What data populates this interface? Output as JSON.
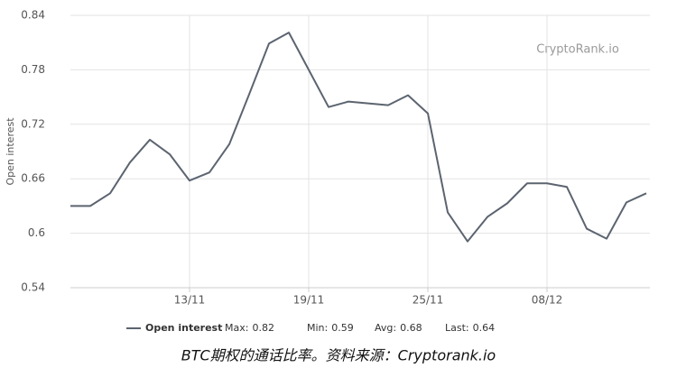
{
  "chart_data": {
    "type": "line",
    "y_label": "Open interest",
    "watermark": "CryptoRank.io",
    "caption": "BTC期权的通话比率。资料来源：Cryptorank.io",
    "categories": [
      null,
      null,
      null,
      null,
      null,
      null,
      "13/11",
      null,
      null,
      null,
      null,
      null,
      "19/11",
      null,
      null,
      null,
      null,
      null,
      "25/11",
      null,
      null,
      null,
      null,
      null,
      "08/12",
      null,
      null,
      null,
      null,
      null
    ],
    "series": [
      {
        "name": "Open interest",
        "color": "#5c6470",
        "values": [
          0.63,
          0.63,
          0.644,
          0.678,
          0.703,
          0.687,
          0.658,
          0.667,
          0.698,
          0.753,
          0.809,
          0.821,
          0.78,
          0.739,
          0.745,
          0.743,
          0.741,
          0.752,
          0.732,
          0.623,
          0.591,
          0.618,
          0.633,
          0.655,
          0.655,
          0.651,
          0.605,
          0.594,
          0.634,
          0.644
        ]
      }
    ],
    "legend_stats": [
      {
        "label": "Max:",
        "value": 0.82
      },
      {
        "label": "Min:",
        "value": 0.59
      },
      {
        "label": "Avg:",
        "value": 0.68
      },
      {
        "label": "Last:",
        "value": 0.64
      }
    ],
    "ylim": [
      0.54,
      0.84
    ],
    "yticks": [
      0.54,
      0.6,
      0.66,
      0.72,
      0.78,
      0.84
    ],
    "grid": true
  }
}
